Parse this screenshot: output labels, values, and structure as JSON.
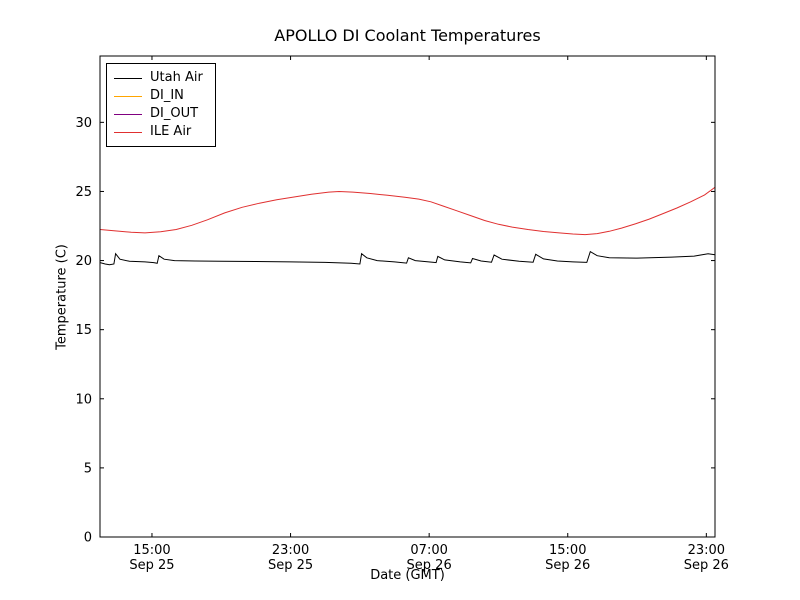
{
  "chart_data": {
    "type": "line",
    "title": "APOLLO DI Coolant Temperatures",
    "xlabel": "Date (GMT)",
    "ylabel": "Temperature (C)",
    "xlim": [
      0,
      35.5
    ],
    "ylim": [
      0,
      34.8
    ],
    "grid": false,
    "legend_position": "upper left",
    "yticks": [
      0,
      5,
      10,
      15,
      20,
      25,
      30
    ],
    "xticks": [
      {
        "hour": 3,
        "time": "15:00",
        "date": "Sep 25"
      },
      {
        "hour": 11,
        "time": "23:00",
        "date": "Sep 25"
      },
      {
        "hour": 19,
        "time": "07:00",
        "date": "Sep 26"
      },
      {
        "hour": 27,
        "time": "15:00",
        "date": "Sep 26"
      },
      {
        "hour": 35,
        "time": "23:00",
        "date": "Sep 26"
      }
    ],
    "series": [
      {
        "name": "Utah Air",
        "color": "#000000",
        "points": [
          [
            0,
            19.85
          ],
          [
            0.3,
            19.75
          ],
          [
            0.55,
            19.7
          ],
          [
            0.8,
            19.75
          ],
          [
            0.9,
            20.5
          ],
          [
            1.15,
            20.1
          ],
          [
            1.7,
            19.95
          ],
          [
            2.6,
            19.9
          ],
          [
            3.1,
            19.85
          ],
          [
            3.3,
            19.8
          ],
          [
            3.4,
            20.35
          ],
          [
            3.7,
            20.1
          ],
          [
            4.3,
            20.0
          ],
          [
            5.5,
            19.97
          ],
          [
            7,
            19.95
          ],
          [
            9,
            19.93
          ],
          [
            11,
            19.9
          ],
          [
            13,
            19.87
          ],
          [
            14.5,
            19.8
          ],
          [
            15.0,
            19.75
          ],
          [
            15.1,
            20.5
          ],
          [
            15.4,
            20.2
          ],
          [
            16.0,
            20.0
          ],
          [
            17.0,
            19.9
          ],
          [
            17.7,
            19.82
          ],
          [
            17.8,
            20.2
          ],
          [
            18.2,
            20.0
          ],
          [
            19.2,
            19.88
          ],
          [
            19.4,
            19.85
          ],
          [
            19.5,
            20.3
          ],
          [
            19.9,
            20.05
          ],
          [
            20.8,
            19.9
          ],
          [
            21.4,
            19.83
          ],
          [
            21.5,
            20.15
          ],
          [
            22.0,
            19.97
          ],
          [
            22.6,
            19.88
          ],
          [
            22.75,
            20.4
          ],
          [
            23.2,
            20.1
          ],
          [
            24.2,
            19.95
          ],
          [
            25.0,
            19.88
          ],
          [
            25.15,
            20.45
          ],
          [
            25.6,
            20.12
          ],
          [
            26.4,
            19.97
          ],
          [
            27.3,
            19.9
          ],
          [
            28.1,
            19.87
          ],
          [
            28.3,
            20.65
          ],
          [
            28.7,
            20.35
          ],
          [
            29.4,
            20.2
          ],
          [
            31,
            20.18
          ],
          [
            33,
            20.25
          ],
          [
            34.3,
            20.32
          ],
          [
            35.1,
            20.5
          ],
          [
            35.5,
            20.42
          ]
        ]
      },
      {
        "name": "DI_IN",
        "color": "#ffa500",
        "points": []
      },
      {
        "name": "DI_OUT",
        "color": "#800080",
        "points": []
      },
      {
        "name": "ILE Air",
        "color": "#e03030",
        "points": [
          [
            0,
            22.25
          ],
          [
            0.8,
            22.15
          ],
          [
            1.8,
            22.05
          ],
          [
            2.6,
            22.0
          ],
          [
            3.5,
            22.08
          ],
          [
            4.4,
            22.25
          ],
          [
            5.3,
            22.55
          ],
          [
            6.2,
            22.95
          ],
          [
            7.2,
            23.45
          ],
          [
            8.2,
            23.85
          ],
          [
            9.2,
            24.15
          ],
          [
            10.2,
            24.4
          ],
          [
            11.2,
            24.6
          ],
          [
            12.2,
            24.8
          ],
          [
            13.2,
            24.95
          ],
          [
            13.8,
            25.0
          ],
          [
            14.6,
            24.95
          ],
          [
            15.6,
            24.85
          ],
          [
            16.6,
            24.72
          ],
          [
            17.6,
            24.58
          ],
          [
            18.4,
            24.45
          ],
          [
            19.1,
            24.25
          ],
          [
            19.8,
            23.95
          ],
          [
            20.6,
            23.6
          ],
          [
            21.4,
            23.25
          ],
          [
            22.2,
            22.9
          ],
          [
            23.0,
            22.62
          ],
          [
            23.8,
            22.42
          ],
          [
            24.7,
            22.25
          ],
          [
            25.6,
            22.1
          ],
          [
            26.5,
            22.0
          ],
          [
            27.3,
            21.92
          ],
          [
            28.0,
            21.88
          ],
          [
            28.7,
            21.95
          ],
          [
            29.4,
            22.12
          ],
          [
            30.1,
            22.35
          ],
          [
            30.9,
            22.65
          ],
          [
            31.7,
            23.0
          ],
          [
            32.5,
            23.4
          ],
          [
            33.3,
            23.8
          ],
          [
            34.1,
            24.25
          ],
          [
            34.9,
            24.75
          ],
          [
            35.5,
            25.3
          ]
        ]
      }
    ]
  }
}
